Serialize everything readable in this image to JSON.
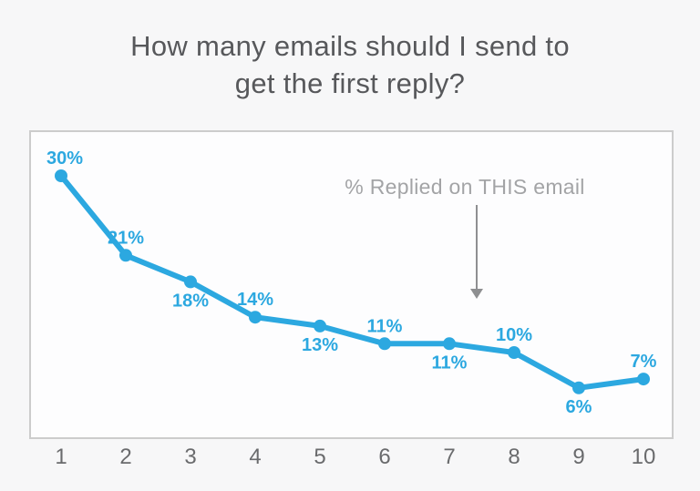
{
  "title": {
    "line1": "How many emails should I send to",
    "line2": "get the first reply?"
  },
  "chart_data": {
    "type": "line",
    "title": "How many emails should I send to get the first reply?",
    "x": [
      1,
      2,
      3,
      4,
      5,
      6,
      7,
      8,
      9,
      10
    ],
    "values": [
      30,
      21,
      18,
      14,
      13,
      11,
      11,
      10,
      6,
      7
    ],
    "point_labels": [
      "30%",
      "21%",
      "18%",
      "14%",
      "13%",
      "11%",
      "11%",
      "10%",
      "6%",
      "7%"
    ],
    "label_positions": [
      "above",
      "above",
      "below",
      "above",
      "below",
      "above",
      "below",
      "above",
      "below",
      "above"
    ],
    "x_ticks": [
      "1",
      "2",
      "3",
      "4",
      "5",
      "6",
      "7",
      "8",
      "9",
      "10"
    ],
    "xlabel": "",
    "ylabel": "",
    "ylim": [
      0,
      33
    ],
    "grid": false,
    "legend": "none",
    "annotation": {
      "text": "% Replied on THIS email",
      "arrow": "down"
    },
    "colors": {
      "line": "#2ca8e0",
      "point": "#2ca8e0",
      "point_label": "#2ca8e0",
      "title_text": "#57585b",
      "axis_text": "#6a6b6d",
      "annotation_text": "#a3a4a6",
      "arrow": "#8e8f91",
      "plot_border": "#cccccc",
      "plot_bg": "#fdfdfe",
      "page_bg": "#f7f7f8"
    }
  }
}
